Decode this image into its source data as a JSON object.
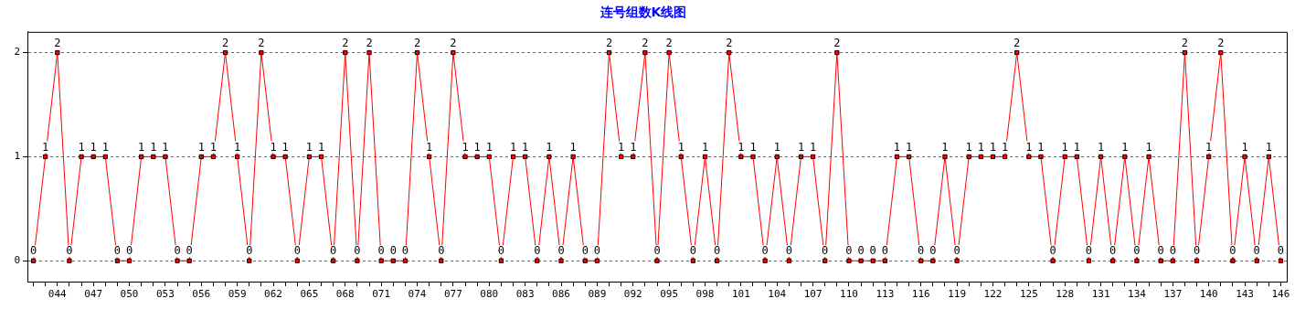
{
  "chart_data": {
    "type": "line",
    "title": "连号组数K线图",
    "categories": [
      null,
      null,
      "044",
      null,
      null,
      "047",
      null,
      null,
      "050",
      null,
      null,
      "053",
      null,
      null,
      "056",
      null,
      null,
      "059",
      null,
      null,
      "062",
      null,
      null,
      "065",
      null,
      null,
      "068",
      null,
      null,
      "071",
      null,
      null,
      "074",
      null,
      null,
      "077",
      null,
      null,
      "080",
      null,
      null,
      "083",
      null,
      null,
      "086",
      null,
      null,
      "089",
      null,
      null,
      "092",
      null,
      null,
      "095",
      null,
      null,
      "098",
      null,
      null,
      "101",
      null,
      null,
      "104",
      null,
      null,
      "107",
      null,
      null,
      "110",
      null,
      null,
      "113",
      null,
      null,
      "116",
      null,
      null,
      "119",
      null,
      null,
      "122",
      null,
      null,
      "125",
      null,
      null,
      "128",
      null,
      null,
      "131",
      null,
      null,
      "134",
      null,
      null,
      "137",
      null,
      null,
      "140",
      null,
      null,
      "143",
      null,
      null,
      "146"
    ],
    "series": [
      {
        "color": "#ff0000",
        "values": [
          0,
          1,
          2,
          0,
          1,
          1,
          1,
          0,
          0,
          1,
          1,
          1,
          0,
          0,
          1,
          1,
          2,
          1,
          0,
          2,
          1,
          1,
          0,
          1,
          1,
          0,
          2,
          0,
          2,
          0,
          0,
          0,
          2,
          1,
          0,
          2,
          1,
          1,
          1,
          0,
          1,
          1,
          0,
          1,
          0,
          1,
          0,
          0,
          2,
          1,
          1,
          2,
          0,
          2,
          1,
          0,
          1,
          0,
          2,
          1,
          1,
          0,
          1,
          0,
          1,
          1,
          0,
          2,
          0,
          0,
          0,
          0,
          1,
          1,
          0,
          0,
          1,
          0,
          1,
          1,
          1,
          1,
          2,
          1,
          1,
          0,
          1,
          1,
          0,
          1,
          0,
          1,
          0,
          1,
          0,
          0,
          2,
          0,
          1,
          2,
          0,
          1,
          0,
          1,
          0
        ]
      }
    ],
    "ylim": [
      -0.2,
      2.2
    ],
    "yticks": [
      0,
      1,
      2
    ],
    "grid": "y",
    "legend": false,
    "marker": "square",
    "line_style": "solid",
    "data_labels": true
  }
}
